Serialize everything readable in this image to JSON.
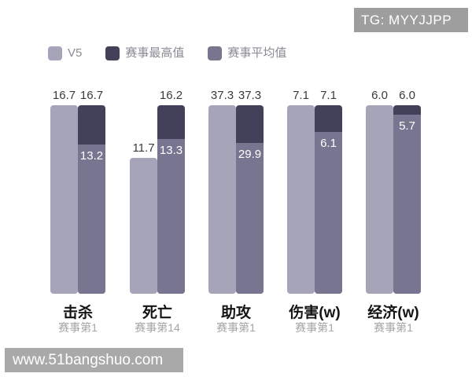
{
  "badge": {
    "text": "TG: MYYJJPP"
  },
  "legend": [
    {
      "label": "V5",
      "color": "#a6a4b9"
    },
    {
      "label": "赛事最高值",
      "color": "#434159"
    },
    {
      "label": "赛事平均值",
      "color": "#787590"
    }
  ],
  "watermark": {
    "text": "www.51bangshuo.com"
  },
  "chart_data": {
    "type": "bar",
    "title": "",
    "legend_position": "top-left",
    "grid": false,
    "normalization": "each group scaled so its maximum value fills the full column height",
    "series_names": [
      "V5",
      "赛事最高值",
      "赛事平均值"
    ],
    "colors": {
      "v5": "#a6a4b9",
      "max": "#434159",
      "avg": "#787590"
    },
    "groups": [
      {
        "category": "击杀",
        "rank": "赛事第1",
        "v5": "16.7",
        "max": "16.7",
        "avg": "13.2"
      },
      {
        "category": "死亡",
        "rank": "赛事第14",
        "v5": "11.7",
        "max": "16.2",
        "avg": "13.3"
      },
      {
        "category": "助攻",
        "rank": "赛事第1",
        "v5": "37.3",
        "max": "37.3",
        "avg": "29.9"
      },
      {
        "category": "伤害(w)",
        "rank": "赛事第1",
        "v5": "7.1",
        "max": "7.1",
        "avg": "6.1"
      },
      {
        "category": "经济(w)",
        "rank": "赛事第1",
        "v5": "6.0",
        "max": "6.0",
        "avg": "5.7"
      }
    ]
  }
}
